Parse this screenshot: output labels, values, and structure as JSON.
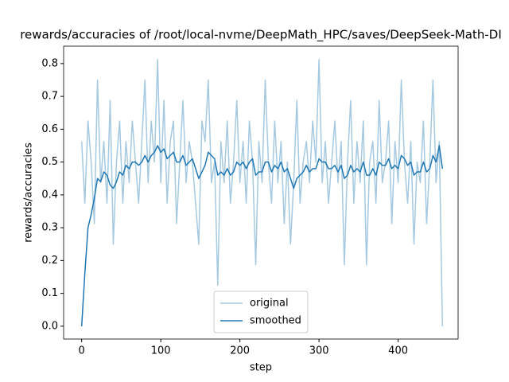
{
  "chart_data": {
    "type": "line",
    "title": "rewards/accuracies of /root/local-nvme/DeepMath_HPC/saves/DeepSeek-Math-DI",
    "xlabel": "step",
    "ylabel": "rewards/accuracies",
    "x": [
      0,
      4,
      8,
      12,
      16,
      20,
      24,
      28,
      32,
      36,
      40,
      44,
      48,
      52,
      56,
      60,
      64,
      68,
      72,
      76,
      80,
      84,
      88,
      92,
      96,
      100,
      104,
      108,
      112,
      116,
      120,
      124,
      128,
      132,
      136,
      140,
      144,
      148,
      152,
      156,
      160,
      164,
      168,
      172,
      176,
      180,
      184,
      188,
      192,
      196,
      200,
      204,
      208,
      212,
      216,
      220,
      224,
      228,
      232,
      236,
      240,
      244,
      248,
      252,
      256,
      260,
      264,
      268,
      272,
      276,
      280,
      284,
      288,
      292,
      296,
      300,
      304,
      308,
      312,
      316,
      320,
      324,
      328,
      332,
      336,
      340,
      344,
      348,
      352,
      356,
      360,
      364,
      368,
      372,
      376,
      380,
      384,
      388,
      392,
      396,
      400,
      404,
      408,
      412,
      416,
      420,
      424,
      428,
      432,
      436,
      440,
      444,
      448,
      452,
      456
    ],
    "series": [
      {
        "name": "original",
        "color": "#1f77b4",
        "alpha": 0.4,
        "values": [
          0.5625,
          0.375,
          0.625,
          0.5,
          0.3125,
          0.75,
          0.4375,
          0.5625,
          0.375,
          0.6875,
          0.25,
          0.5,
          0.625,
          0.375,
          0.5625,
          0.4375,
          0.625,
          0.5,
          0.375,
          0.5625,
          0.75,
          0.4375,
          0.625,
          0.5,
          0.8125,
          0.4375,
          0.6875,
          0.375,
          0.5625,
          0.625,
          0.3125,
          0.5,
          0.6875,
          0.4375,
          0.5625,
          0.5,
          0.375,
          0.25,
          0.625,
          0.5625,
          0.75,
          0.4375,
          0.5,
          0.125,
          0.5625,
          0.4375,
          0.625,
          0.375,
          0.5,
          0.6875,
          0.4375,
          0.5625,
          0.375,
          0.625,
          0.5,
          0.1875,
          0.5625,
          0.4375,
          0.75,
          0.5,
          0.375,
          0.625,
          0.4375,
          0.5625,
          0.3125,
          0.5,
          0.25,
          0.4375,
          0.6875,
          0.375,
          0.5,
          0.5625,
          0.4375,
          0.625,
          0.5,
          0.8125,
          0.4375,
          0.5625,
          0.375,
          0.5,
          0.625,
          0.4375,
          0.5625,
          0.1875,
          0.5,
          0.6875,
          0.375,
          0.5625,
          0.4375,
          0.625,
          0.1875,
          0.5,
          0.5625,
          0.375,
          0.6875,
          0.4375,
          0.5,
          0.625,
          0.3125,
          0.5625,
          0.4375,
          0.75,
          0.5,
          0.375,
          0.5625,
          0.25,
          0.5,
          0.4375,
          0.625,
          0.3125,
          0.5,
          0.75,
          0.4375,
          0.5625,
          0.0
        ]
      },
      {
        "name": "smoothed",
        "color": "#1f77b4",
        "alpha": 1,
        "values": [
          0,
          0.16,
          0.3,
          0.34,
          0.39,
          0.45,
          0.44,
          0.47,
          0.46,
          0.43,
          0.42,
          0.44,
          0.47,
          0.46,
          0.49,
          0.48,
          0.5,
          0.5,
          0.49,
          0.5,
          0.52,
          0.5,
          0.52,
          0.53,
          0.55,
          0.53,
          0.54,
          0.51,
          0.52,
          0.53,
          0.5,
          0.5,
          0.52,
          0.49,
          0.5,
          0.51,
          0.48,
          0.45,
          0.47,
          0.49,
          0.53,
          0.52,
          0.51,
          0.46,
          0.47,
          0.46,
          0.48,
          0.46,
          0.47,
          0.5,
          0.49,
          0.5,
          0.48,
          0.5,
          0.51,
          0.46,
          0.47,
          0.47,
          0.5,
          0.5,
          0.47,
          0.49,
          0.48,
          0.5,
          0.47,
          0.48,
          0.45,
          0.42,
          0.45,
          0.46,
          0.47,
          0.49,
          0.47,
          0.48,
          0.48,
          0.51,
          0.5,
          0.5,
          0.48,
          0.48,
          0.49,
          0.47,
          0.49,
          0.45,
          0.46,
          0.49,
          0.47,
          0.48,
          0.47,
          0.5,
          0.46,
          0.46,
          0.48,
          0.46,
          0.5,
          0.49,
          0.49,
          0.51,
          0.48,
          0.49,
          0.48,
          0.52,
          0.51,
          0.49,
          0.5,
          0.46,
          0.47,
          0.47,
          0.5,
          0.47,
          0.48,
          0.52,
          0.5,
          0.55,
          0.48
        ]
      }
    ],
    "xlim": [
      -22.8,
      475.8
    ],
    "xticks": [
      0,
      100,
      200,
      300,
      400
    ],
    "ylim": [
      -0.039,
      0.853
    ],
    "yticks": [
      {
        "value": 0,
        "label": "0.0"
      },
      0.1,
      0.2,
      0.3,
      0.4,
      0.5,
      0.6,
      0.7,
      0.8
    ],
    "legend": "lower center"
  }
}
